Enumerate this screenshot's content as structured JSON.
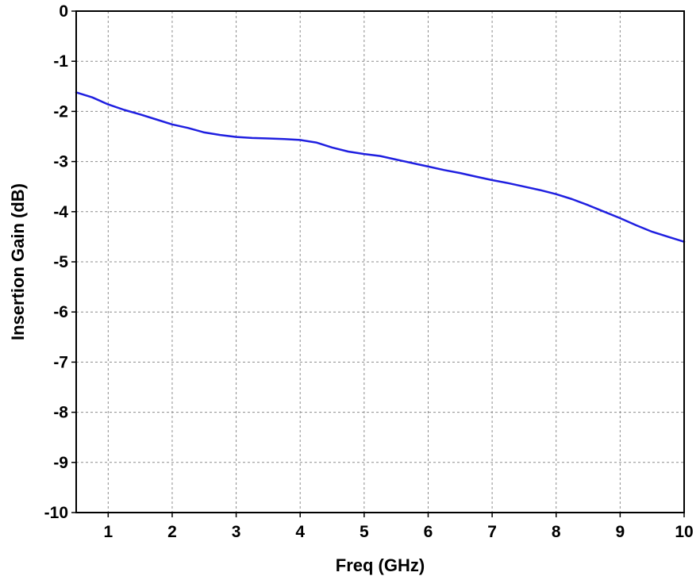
{
  "chart_data": {
    "type": "line",
    "title": "",
    "xlabel": "Freq (GHz)",
    "ylabel": "Insertion Gain (dB)",
    "xlim": [
      0.5,
      10
    ],
    "ylim": [
      -10,
      0
    ],
    "xticks": [
      1,
      2,
      3,
      4,
      5,
      6,
      7,
      8,
      9,
      10
    ],
    "yticks": [
      0,
      -1,
      -2,
      -3,
      -4,
      -5,
      -6,
      -7,
      -8,
      -9,
      -10
    ],
    "grid": true,
    "legend": "none",
    "colors": {
      "series": "#1f1fe0",
      "grid": "#8c8c8c",
      "axes": "#000000",
      "background": "#ffffff"
    },
    "series": [
      {
        "x": [
          0.5,
          0.75,
          1.0,
          1.25,
          1.5,
          1.75,
          2.0,
          2.25,
          2.5,
          2.75,
          3.0,
          3.25,
          3.5,
          3.75,
          4.0,
          4.25,
          4.5,
          4.75,
          5.0,
          5.25,
          5.5,
          5.75,
          6.0,
          6.25,
          6.5,
          6.75,
          7.0,
          7.25,
          7.5,
          7.75,
          8.0,
          8.25,
          8.5,
          8.75,
          9.0,
          9.25,
          9.5,
          9.75,
          10.0
        ],
        "y": [
          -1.62,
          -1.72,
          -1.86,
          -1.97,
          -2.06,
          -2.16,
          -2.26,
          -2.33,
          -2.42,
          -2.47,
          -2.51,
          -2.53,
          -2.54,
          -2.55,
          -2.57,
          -2.62,
          -2.72,
          -2.8,
          -2.85,
          -2.89,
          -2.96,
          -3.03,
          -3.1,
          -3.17,
          -3.23,
          -3.3,
          -3.37,
          -3.43,
          -3.5,
          -3.57,
          -3.65,
          -3.75,
          -3.87,
          -4.0,
          -4.13,
          -4.27,
          -4.4,
          -4.5,
          -4.6
        ]
      }
    ]
  }
}
